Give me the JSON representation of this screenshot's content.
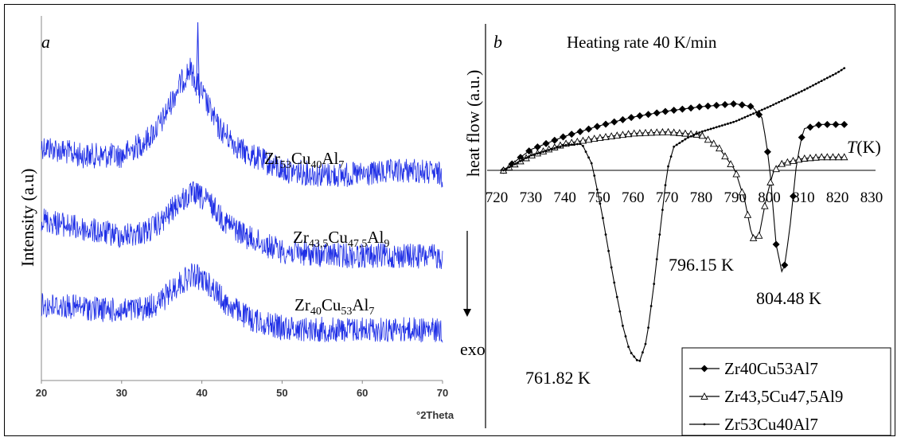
{
  "chart_data": [
    {
      "panel": "a",
      "type": "line",
      "title": "",
      "xlabel": "°2Theta",
      "ylabel": "Intensity (a.u)",
      "xlim": [
        20,
        70
      ],
      "x_ticks": [
        "20",
        "30",
        "40",
        "50",
        "60",
        "70"
      ],
      "grid": false,
      "color": "#1f2fe6",
      "series": [
        {
          "label_base": "Zr",
          "label_parts": [
            [
              "Zr",
              ""
            ],
            [
              "53",
              "sub"
            ],
            [
              "Cu",
              ""
            ],
            [
              "40",
              "sub"
            ],
            [
              "Al",
              ""
            ],
            [
              "7",
              "sub"
            ]
          ],
          "x": [
            20,
            25,
            30,
            33,
            35,
            37,
            38.5,
            40,
            42,
            45,
            50,
            55,
            60,
            66,
            70
          ],
          "y": [
            0.55,
            0.45,
            0.45,
            0.6,
            0.8,
            1.15,
            1.35,
            1.1,
            0.75,
            0.5,
            0.3,
            0.25,
            0.25,
            0.3,
            0.25
          ]
        },
        {
          "label_parts": [
            [
              "Zr",
              ""
            ],
            [
              "43,5",
              "sub"
            ],
            [
              "Cu",
              ""
            ],
            [
              "47,5",
              "sub"
            ],
            [
              "Al",
              ""
            ],
            [
              "9",
              "sub"
            ]
          ],
          "x": [
            20,
            25,
            30,
            33,
            35,
            37,
            39,
            41,
            43,
            46,
            50,
            55,
            60,
            66,
            70
          ],
          "y": [
            0.45,
            0.35,
            0.28,
            0.32,
            0.42,
            0.62,
            0.72,
            0.62,
            0.42,
            0.25,
            0.12,
            0.08,
            0.07,
            0.07,
            0.06
          ]
        },
        {
          "label_parts": [
            [
              "Zr",
              ""
            ],
            [
              "40",
              "sub"
            ],
            [
              "Cu",
              ""
            ],
            [
              "53",
              "sub"
            ],
            [
              "Al",
              ""
            ],
            [
              "7",
              "sub"
            ]
          ],
          "x": [
            20,
            25,
            30,
            33,
            35,
            37,
            39,
            41,
            43,
            46,
            50,
            55,
            60,
            66,
            70
          ],
          "y": [
            0.3,
            0.28,
            0.24,
            0.27,
            0.35,
            0.52,
            0.62,
            0.52,
            0.32,
            0.16,
            0.07,
            0.05,
            0.05,
            0.05,
            0.04
          ]
        }
      ]
    },
    {
      "panel": "b",
      "type": "line",
      "title": "Heating rate 40 K/min",
      "ylabel": "heat flow (a.u.)",
      "xlabel": "T(K)",
      "xlabel_italic": "T",
      "xlabel_rest": "(K)",
      "xlim": [
        720,
        830
      ],
      "x_ticks": [
        "720",
        "730",
        "740",
        "750",
        "760",
        "770",
        "780",
        "790",
        "800",
        "810",
        "820",
        "830"
      ],
      "exo_label": "exo",
      "legend_position": "bottom-right",
      "series": [
        {
          "name": "Zr40Cu53Al7",
          "marker": "diamond",
          "x": [
            722,
            730,
            740,
            750,
            760,
            770,
            780,
            790,
            795,
            798,
            800,
            802,
            804,
            806,
            808,
            810,
            815,
            820,
            822
          ],
          "y": [
            0,
            1.4,
            2.3,
            3.0,
            3.6,
            4.0,
            4.3,
            4.5,
            4.3,
            3.5,
            0.5,
            -5.0,
            -7.2,
            -4.0,
            0.5,
            2.8,
            3.1,
            3.1,
            3.1
          ],
          "peak_label": "804.48 K"
        },
        {
          "name": "Zr43,5Cu47,5Al9",
          "marker": "triangle",
          "x": [
            722,
            730,
            740,
            750,
            760,
            770,
            780,
            785,
            790,
            793,
            795,
            797,
            799,
            801,
            803,
            806,
            810,
            815,
            820,
            822
          ],
          "y": [
            0,
            1.0,
            1.8,
            2.2,
            2.5,
            2.6,
            2.4,
            1.6,
            0.0,
            -2.2,
            -4.6,
            -4.4,
            -2.0,
            -0.2,
            0.4,
            0.6,
            0.8,
            0.9,
            0.9,
            0.9
          ],
          "peak_label": "796.15 K"
        },
        {
          "name": "Zr53Cu40Al7",
          "marker": "dot",
          "x": [
            722,
            730,
            740,
            745,
            748,
            751,
            754,
            757,
            759,
            761.8,
            764,
            766,
            768,
            770,
            772,
            776,
            780,
            790,
            800,
            810,
            820,
            822
          ],
          "y": [
            0,
            1.0,
            1.7,
            1.8,
            0.4,
            -3.0,
            -7.0,
            -10.5,
            -12.2,
            -13.0,
            -11.5,
            -8.0,
            -4.0,
            0.0,
            1.6,
            2.2,
            2.6,
            3.3,
            4.3,
            5.4,
            6.6,
            6.9
          ],
          "peak_label": "761.82 K"
        }
      ]
    }
  ]
}
